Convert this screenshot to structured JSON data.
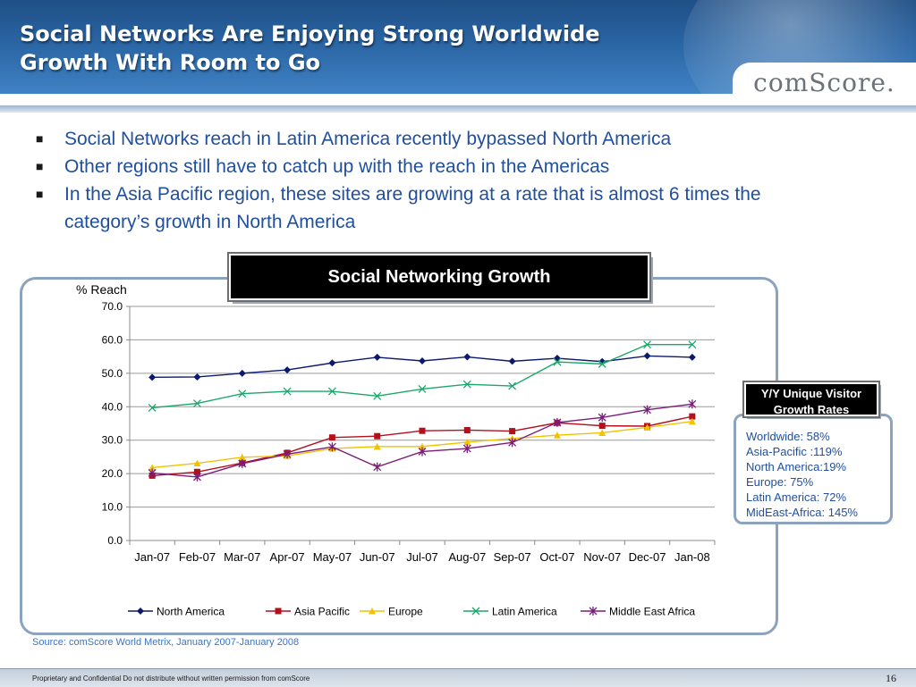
{
  "header": {
    "title_line1": "Social Networks Are Enjoying Strong Worldwide",
    "title_line2": "Growth With Room to Go",
    "logo_text": "comScore."
  },
  "bullets": [
    "Social Networks reach in Latin America recently bypassed North America",
    "Other regions still have to catch up with the reach in the Americas",
    "In the Asia Pacific region, these sites are growing at a rate that is almost 6 times the category’s growth in North America"
  ],
  "bullet_marker": "■",
  "yoy": {
    "title": "Y/Y  Unique Visitor Growth Rates",
    "items": [
      "Worldwide: 58%",
      "Asia-Pacific :119%",
      "North America:19%",
      "Europe: 75%",
      "Latin America: 72%",
      "MidEast-Africa: 145%"
    ]
  },
  "source": "Source: comScore World Metrix, January 2007-January 2008",
  "footer": {
    "confidential": "Proprietary and Confidential Do not distribute without written permission from comScore",
    "page_number": "16"
  },
  "chart_data": {
    "type": "line",
    "title": "Social Networking Growth",
    "ylabel": "% Reach",
    "xlabel": "",
    "ylim": [
      0,
      70
    ],
    "yticks": [
      "0.0",
      "10.0",
      "20.0",
      "30.0",
      "40.0",
      "50.0",
      "60.0",
      "70.0"
    ],
    "grid": true,
    "legend_position": "bottom",
    "categories": [
      "Jan-07",
      "Feb-07",
      "Mar-07",
      "Apr-07",
      "May-07",
      "Jun-07",
      "Jul-07",
      "Aug-07",
      "Sep-07",
      "Oct-07",
      "Nov-07",
      "Dec-07",
      "Jan-08"
    ],
    "series": [
      {
        "name": "North America",
        "color": "#0c1a6e",
        "marker": "diamond",
        "values": [
          48.8,
          48.9,
          50.0,
          51.0,
          53.1,
          54.8,
          53.7,
          54.9,
          53.6,
          54.5,
          53.5,
          55.2,
          54.8
        ]
      },
      {
        "name": "Asia Pacific",
        "color": "#b3101c",
        "marker": "square",
        "values": [
          19.4,
          20.5,
          23.2,
          26.2,
          30.8,
          31.2,
          32.8,
          33.0,
          32.7,
          35.2,
          34.3,
          34.2,
          37.1
        ]
      },
      {
        "name": "Europe",
        "color": "#f2c200",
        "marker": "triangle",
        "values": [
          21.8,
          23.1,
          24.9,
          25.3,
          27.5,
          28.1,
          28.1,
          29.4,
          30.5,
          31.5,
          32.2,
          33.8,
          35.6
        ]
      },
      {
        "name": "Latin America",
        "color": "#19a86a",
        "marker": "x",
        "values": [
          39.7,
          41.0,
          43.9,
          44.6,
          44.6,
          43.2,
          45.3,
          46.7,
          46.2,
          53.4,
          52.8,
          58.6,
          58.6
        ]
      },
      {
        "name": "Middle East Africa",
        "color": "#7b1c7c",
        "marker": "star",
        "values": [
          20.2,
          19.0,
          23.0,
          25.8,
          28.0,
          22.0,
          26.6,
          27.5,
          29.3,
          35.3,
          36.8,
          39.1,
          40.8
        ]
      }
    ]
  }
}
